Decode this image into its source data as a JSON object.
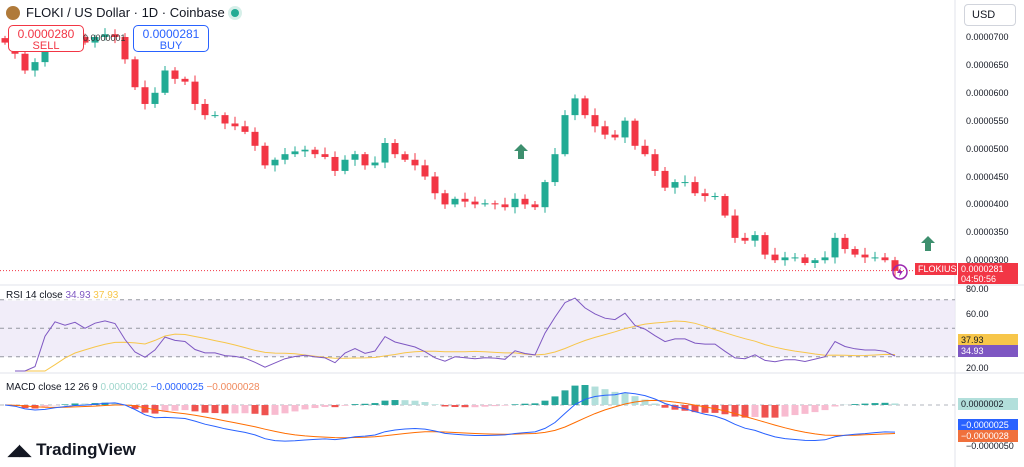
{
  "header": {
    "symbol_title": "FLOKI / US Dollar · 1D · Coinbase",
    "sell_price": "0.0000280",
    "sell_label": "SELL",
    "buy_price": "0.0000281",
    "buy_label": "BUY",
    "spread": "0.0000001",
    "currency": "USD"
  },
  "price_axis": {
    "labels": [
      "0.0000700",
      "0.0000650",
      "0.0000600",
      "0.0000550",
      "0.0000500",
      "0.0000450",
      "0.0000400",
      "0.0000350",
      "0.0000300"
    ],
    "symbol_tag": "FLOKIUSD",
    "last_price": "0.0000281",
    "countdown": "04:50:56"
  },
  "rsi": {
    "title": "RSI 14 close",
    "value": "34.93",
    "ma_value": "37.93",
    "axis_labels": [
      "80.00",
      "60.00",
      "20.00"
    ]
  },
  "macd": {
    "title": "MACD close 12 26 9",
    "hist": "0.0000002",
    "macd": "−0.0000025",
    "signal": "−0.0000028",
    "axis_label": "−0.0000050"
  },
  "branding": "TradingView",
  "colors": {
    "up": "#22ab94",
    "down": "#f23645",
    "rsi": "#7e57c2",
    "rsi_ma": "#f7c64a",
    "macd": "#2962ff",
    "signal": "#ff6d00"
  },
  "chart_data": {
    "type": "candlestick",
    "unit": "1e-7 USD",
    "ylim": [
      280,
      720
    ],
    "closes": [
      690,
      670,
      640,
      655,
      680,
      700,
      695,
      700,
      690,
      700,
      705,
      700,
      660,
      610,
      580,
      600,
      640,
      625,
      620,
      580,
      560,
      560,
      545,
      540,
      530,
      505,
      470,
      480,
      490,
      495,
      498,
      490,
      485,
      460,
      480,
      490,
      470,
      475,
      510,
      490,
      480,
      470,
      450,
      420,
      400,
      410,
      405,
      400,
      402,
      400,
      395,
      410,
      400,
      395,
      440,
      490,
      560,
      590,
      560,
      540,
      525,
      520,
      550,
      505,
      490,
      460,
      430,
      440,
      440,
      420,
      415,
      415,
      380,
      340,
      335,
      345,
      310,
      300,
      305,
      305,
      295,
      300,
      305,
      340,
      320,
      310,
      305,
      305,
      300,
      281
    ],
    "rsi_bands": [
      70,
      50,
      30
    ]
  }
}
